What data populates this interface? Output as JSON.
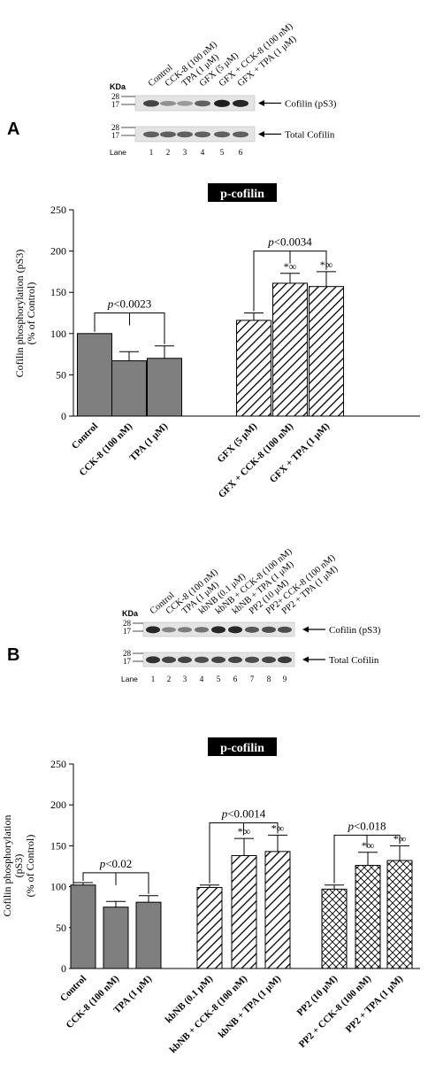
{
  "panel_a": {
    "letter": "A",
    "blot": {
      "kda_label": "KDa",
      "lane_label": "Lane",
      "top_markers": [
        "28",
        "17"
      ],
      "bottom_markers": [
        "28",
        "17"
      ],
      "lanes": [
        "1",
        "2",
        "3",
        "4",
        "5",
        "6"
      ],
      "lane_headers": [
        "Control",
        "CCK-8 (100 nM)",
        "TPA (1 μM)",
        "GFX (5 μM)",
        "GFX + CCK-8 (100 nM)",
        "GFX + TPA (1 μM)"
      ],
      "band_top_label": "Cofilin (pS3)",
      "band_bottom_label": "Total Cofilin",
      "band_top_intensity": [
        0.75,
        0.35,
        0.3,
        0.6,
        0.95,
        0.9
      ],
      "band_bottom_intensity": [
        0.6,
        0.6,
        0.6,
        0.6,
        0.6,
        0.6
      ]
    }
  },
  "panel_b": {
    "letter": "B",
    "blot": {
      "kda_label": "KDa",
      "lane_label": "Lane",
      "top_markers": [
        "28",
        "17"
      ],
      "bottom_markers": [
        "28",
        "17"
      ],
      "lanes": [
        "1",
        "2",
        "3",
        "4",
        "5",
        "6",
        "7",
        "8",
        "9"
      ],
      "lane_headers": [
        "Control",
        "CCK-8 (100 nM)",
        "TPA (1 μM)",
        "kbNB (0.1 μM)",
        "kbNB + CCK-8 (100 nM)",
        "kbNB + TPA (1 μM)",
        "PP2 (10 μM)",
        "PP2+ CCK-8 (100 nM)",
        "PP2 + TPA (1 μM)"
      ],
      "band_top_label": "Cofilin (pS3)",
      "band_bottom_label": "Total Cofilin",
      "band_top_intensity": [
        0.9,
        0.4,
        0.45,
        0.5,
        0.9,
        0.9,
        0.65,
        0.7,
        0.7
      ],
      "band_bottom_intensity": [
        0.85,
        0.75,
        0.75,
        0.7,
        0.75,
        0.75,
        0.7,
        0.75,
        0.8
      ]
    }
  },
  "chart_data": [
    {
      "type": "bar",
      "title": "p-cofilin",
      "ylabel_lines": [
        "Cofilin phosphorylation (pS3)",
        "(% of Control)"
      ],
      "ylim": [
        0,
        250
      ],
      "yticks": [
        0,
        50,
        100,
        150,
        200,
        250
      ],
      "categories": [
        "Control",
        "CCK-8 (100 nM)",
        "TPA (1 μM)",
        "GFX (5 μM)",
        "GFX + CCK-8 (100 nM)",
        "GFX + TPA (1 μM)"
      ],
      "values": [
        100,
        67,
        70,
        116,
        161,
        157
      ],
      "errors": [
        0,
        11,
        15,
        9,
        12,
        18
      ],
      "patterns": [
        "solid",
        "solid",
        "solid",
        "hatch",
        "hatch",
        "hatch"
      ],
      "markers": [
        "",
        "",
        "",
        "",
        "*∞",
        "*∞"
      ],
      "brackets": [
        {
          "from": 0,
          "to": 2,
          "y": 125,
          "label": "p<0.0023"
        },
        {
          "from": 3,
          "to": 5,
          "y": 200,
          "label": "p<0.0034"
        }
      ]
    },
    {
      "type": "bar",
      "title": "p-cofilin",
      "ylabel_lines": [
        "Cofilin phosphorylation",
        "(pS3)",
        "(% of Control)"
      ],
      "ylim": [
        0,
        250
      ],
      "yticks": [
        0,
        50,
        100,
        150,
        200,
        250
      ],
      "categories": [
        "Control",
        "CCK-8 (100 nM)",
        "TPA (1 μM)",
        "kbNB (0.1 μM)",
        "kbNB + CCK-8 (100 nM)",
        "kbNB + TPA (1 μM)",
        "PP2 (10 μM)",
        "PP2 + CCK-8 (100 nM)",
        "PP2 + TPA (1 μM)"
      ],
      "values": [
        102,
        75,
        81,
        99,
        138,
        143,
        97,
        126,
        132
      ],
      "errors": [
        3,
        7,
        8,
        3,
        21,
        20,
        5,
        16,
        18
      ],
      "patterns": [
        "solid",
        "solid",
        "solid",
        "hatch",
        "hatch",
        "hatch",
        "cross",
        "cross",
        "cross"
      ],
      "markers": [
        "",
        "",
        "",
        "",
        "*∞",
        "*∞",
        "",
        "*∞",
        "*∞"
      ],
      "brackets": [
        {
          "from": 0,
          "to": 2,
          "y": 117,
          "label": "p<0.02"
        },
        {
          "from": 3,
          "to": 5,
          "y": 178,
          "label": "p<0.0014"
        },
        {
          "from": 6,
          "to": 8,
          "y": 163,
          "label": "p<0.018"
        }
      ]
    }
  ]
}
